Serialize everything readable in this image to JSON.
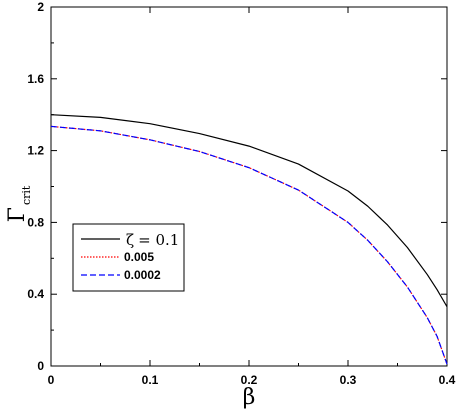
{
  "chart_data": {
    "type": "line",
    "xlabel": "β",
    "ylabel": "Γ",
    "ylabel_subscript": "crit",
    "xlim": [
      0,
      0.4
    ],
    "ylim": [
      0,
      2
    ],
    "x_ticks": [
      0,
      0.1,
      0.2,
      0.3,
      0.4
    ],
    "x_tick_labels": [
      "0",
      "0.1",
      "0.2",
      "0.3",
      "0.4"
    ],
    "y_ticks": [
      0,
      0.4,
      0.8,
      1.2,
      1.6,
      2
    ],
    "y_tick_labels": [
      "0",
      "0.4",
      "0.8",
      "1.2",
      "1.6",
      "2"
    ],
    "grid": false,
    "legend": {
      "placement": "center-left",
      "greek_prefix": "ζ",
      "equals": "= 0.1"
    },
    "series": [
      {
        "name": "0.1",
        "color": "#000000",
        "style": "solid",
        "x": [
          0,
          0.05,
          0.1,
          0.15,
          0.2,
          0.25,
          0.3,
          0.32,
          0.34,
          0.36,
          0.38,
          0.39,
          0.4
        ],
        "y": [
          1.4,
          1.385,
          1.35,
          1.295,
          1.225,
          1.125,
          0.975,
          0.89,
          0.785,
          0.66,
          0.51,
          0.425,
          0.33
        ]
      },
      {
        "name": "0.005",
        "color": "#ff0000",
        "style": "dotted",
        "x": [
          0,
          0.05,
          0.1,
          0.15,
          0.2,
          0.25,
          0.3,
          0.32,
          0.34,
          0.36,
          0.38,
          0.39,
          0.4
        ],
        "y": [
          1.335,
          1.31,
          1.26,
          1.195,
          1.105,
          0.98,
          0.8,
          0.7,
          0.58,
          0.44,
          0.27,
          0.165,
          0.01
        ]
      },
      {
        "name": "0.0002",
        "color": "#0000ff",
        "style": "dashed",
        "x": [
          0,
          0.05,
          0.1,
          0.15,
          0.2,
          0.25,
          0.3,
          0.32,
          0.34,
          0.36,
          0.38,
          0.39,
          0.4
        ],
        "y": [
          1.335,
          1.31,
          1.26,
          1.195,
          1.105,
          0.98,
          0.8,
          0.7,
          0.58,
          0.44,
          0.27,
          0.165,
          0.01
        ]
      }
    ]
  }
}
